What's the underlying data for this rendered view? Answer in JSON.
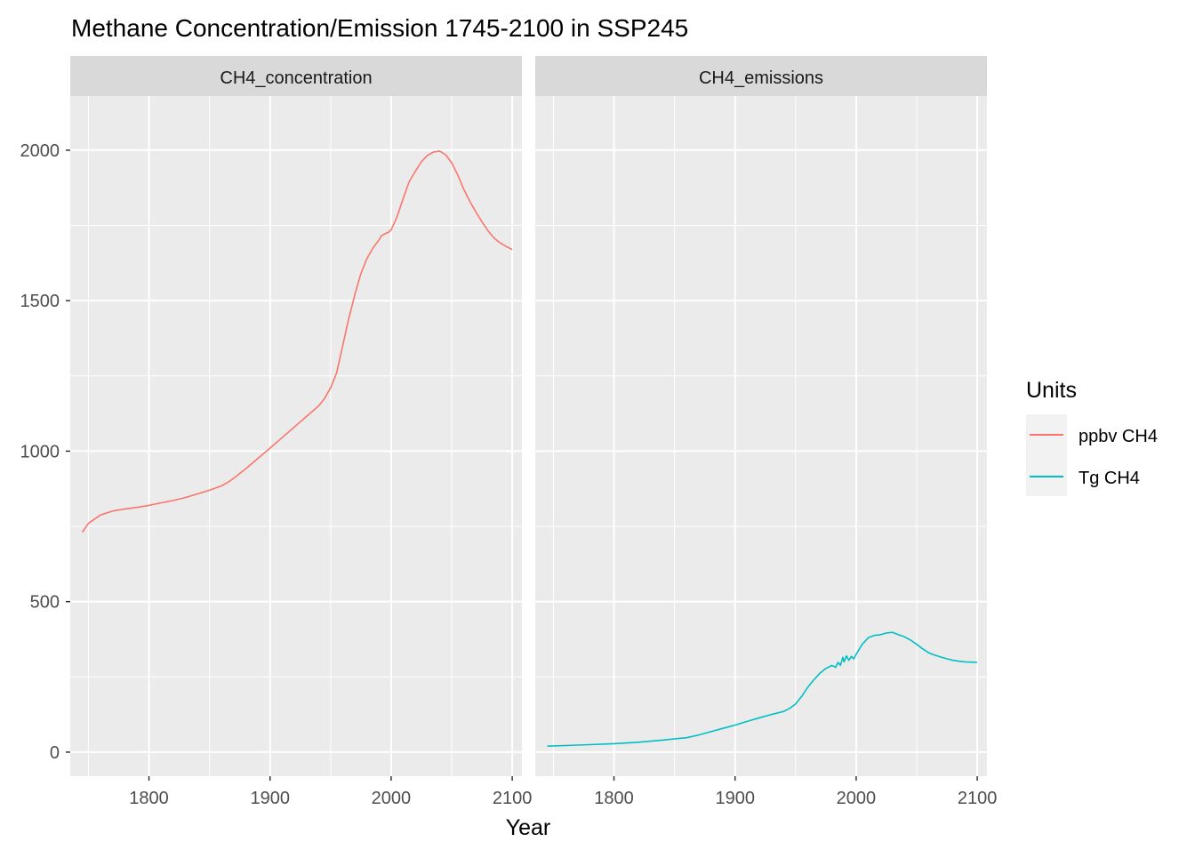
{
  "chart_data": {
    "type": "line",
    "title": "Methane Concentration/Emission 1745-2100 in SSP245",
    "xlabel": "Year",
    "ylabel": "",
    "xlim": [
      1735,
      2108
    ],
    "ylim": [
      -80,
      2180
    ],
    "x_ticks": [
      1800,
      1900,
      2000,
      2100
    ],
    "y_ticks": [
      0,
      500,
      1000,
      1500,
      2000
    ],
    "grid": true,
    "legend": {
      "title": "Units",
      "position": "right",
      "entries": [
        {
          "label": "ppbv CH4",
          "color": "#F8766D"
        },
        {
          "label": "Tg CH4",
          "color": "#00BFC4"
        }
      ]
    },
    "panels": [
      {
        "strip": "CH4_concentration",
        "series": [
          {
            "name": "ppbv CH4",
            "color": "#F8766D",
            "points": [
              [
                1745,
                731
              ],
              [
                1750,
                760
              ],
              [
                1760,
                788
              ],
              [
                1770,
                801
              ],
              [
                1780,
                808
              ],
              [
                1790,
                813
              ],
              [
                1800,
                820
              ],
              [
                1810,
                828
              ],
              [
                1820,
                836
              ],
              [
                1830,
                846
              ],
              [
                1840,
                858
              ],
              [
                1850,
                870
              ],
              [
                1860,
                885
              ],
              [
                1865,
                896
              ],
              [
                1870,
                910
              ],
              [
                1880,
                942
              ],
              [
                1890,
                976
              ],
              [
                1900,
                1010
              ],
              [
                1910,
                1045
              ],
              [
                1920,
                1080
              ],
              [
                1930,
                1115
              ],
              [
                1940,
                1150
              ],
              [
                1945,
                1175
              ],
              [
                1950,
                1210
              ],
              [
                1955,
                1260
              ],
              [
                1960,
                1350
              ],
              [
                1965,
                1440
              ],
              [
                1970,
                1520
              ],
              [
                1975,
                1590
              ],
              [
                1980,
                1640
              ],
              [
                1985,
                1675
              ],
              [
                1990,
                1702
              ],
              [
                1992,
                1716
              ],
              [
                1995,
                1722
              ],
              [
                1998,
                1728
              ],
              [
                2000,
                1735
              ],
              [
                2005,
                1780
              ],
              [
                2010,
                1840
              ],
              [
                2015,
                1896
              ],
              [
                2020,
                1930
              ],
              [
                2025,
                1962
              ],
              [
                2030,
                1983
              ],
              [
                2035,
                1994
              ],
              [
                2040,
                1997
              ],
              [
                2045,
                1985
              ],
              [
                2050,
                1958
              ],
              [
                2055,
                1918
              ],
              [
                2060,
                1870
              ],
              [
                2065,
                1830
              ],
              [
                2070,
                1795
              ],
              [
                2075,
                1762
              ],
              [
                2080,
                1732
              ],
              [
                2085,
                1708
              ],
              [
                2090,
                1692
              ],
              [
                2095,
                1680
              ],
              [
                2100,
                1670
              ]
            ]
          }
        ]
      },
      {
        "strip": "CH4_emissions",
        "series": [
          {
            "name": "Tg CH4",
            "color": "#00BFC4",
            "points": [
              [
                1745,
                20
              ],
              [
                1760,
                22
              ],
              [
                1780,
                25
              ],
              [
                1800,
                28
              ],
              [
                1820,
                33
              ],
              [
                1840,
                40
              ],
              [
                1860,
                48
              ],
              [
                1870,
                57
              ],
              [
                1880,
                68
              ],
              [
                1890,
                79
              ],
              [
                1900,
                90
              ],
              [
                1910,
                102
              ],
              [
                1920,
                114
              ],
              [
                1930,
                125
              ],
              [
                1940,
                135
              ],
              [
                1945,
                145
              ],
              [
                1950,
                160
              ],
              [
                1955,
                185
              ],
              [
                1960,
                215
              ],
              [
                1965,
                240
              ],
              [
                1970,
                262
              ],
              [
                1975,
                278
              ],
              [
                1980,
                288
              ],
              [
                1983,
                282
              ],
              [
                1985,
                298
              ],
              [
                1987,
                288
              ],
              [
                1989,
                315
              ],
              [
                1990,
                300
              ],
              [
                1992,
                320
              ],
              [
                1994,
                305
              ],
              [
                1996,
                318
              ],
              [
                1998,
                310
              ],
              [
                2000,
                325
              ],
              [
                2005,
                358
              ],
              [
                2010,
                380
              ],
              [
                2015,
                388
              ],
              [
                2020,
                390
              ],
              [
                2025,
                396
              ],
              [
                2030,
                398
              ],
              [
                2035,
                390
              ],
              [
                2040,
                383
              ],
              [
                2045,
                372
              ],
              [
                2050,
                358
              ],
              [
                2055,
                343
              ],
              [
                2060,
                330
              ],
              [
                2065,
                322
              ],
              [
                2070,
                316
              ],
              [
                2075,
                310
              ],
              [
                2080,
                305
              ],
              [
                2085,
                302
              ],
              [
                2090,
                300
              ],
              [
                2095,
                299
              ],
              [
                2100,
                298
              ]
            ]
          }
        ]
      }
    ]
  }
}
